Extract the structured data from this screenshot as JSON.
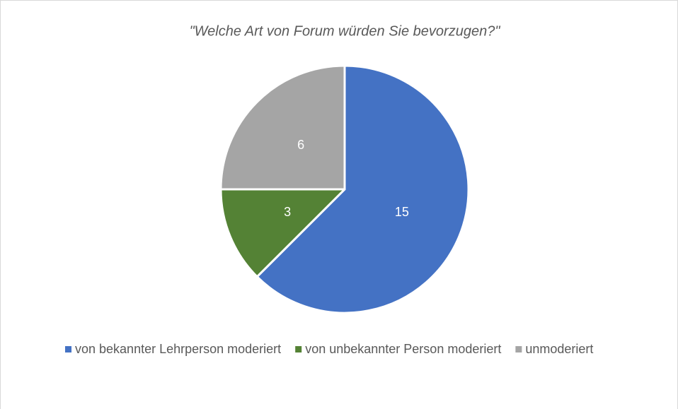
{
  "chart_data": {
    "type": "pie",
    "title": "\"Welche Art von Forum würden Sie bevorzugen?\"",
    "categories": [
      "von bekannter Lehrperson moderiert",
      "von unbekannter Person moderiert",
      "unmoderiert"
    ],
    "values": [
      15,
      3,
      6
    ],
    "colors": [
      "#4472c4",
      "#548235",
      "#a5a5a5"
    ],
    "legend": "bottom"
  }
}
